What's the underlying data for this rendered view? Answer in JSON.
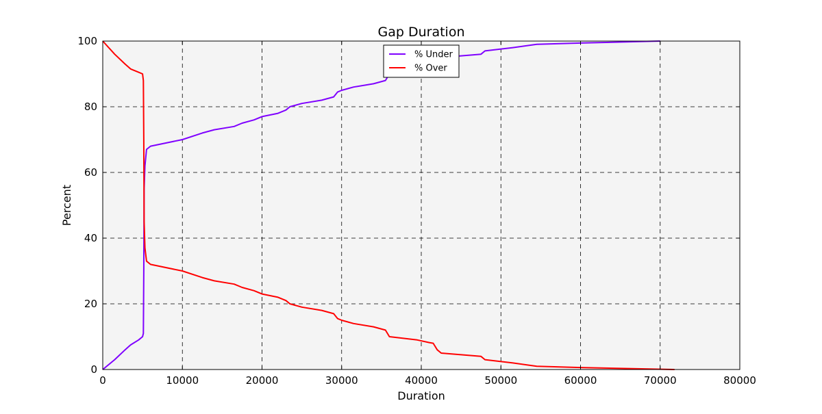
{
  "chart_data": {
    "type": "line",
    "title": "Gap Duration",
    "xlabel": "Duration",
    "ylabel": "Percent",
    "xlim": [
      0,
      80000
    ],
    "ylim": [
      0,
      100
    ],
    "xticks": [
      0,
      10000,
      20000,
      30000,
      40000,
      50000,
      60000,
      70000,
      80000
    ],
    "xtick_labels": [
      "0",
      "10000",
      "20000",
      "30000",
      "40000",
      "50000",
      "60000",
      "70000",
      "80000"
    ],
    "yticks": [
      0,
      20,
      40,
      60,
      80,
      100
    ],
    "ytick_labels": [
      "0",
      "20",
      "40",
      "60",
      "80",
      "100"
    ],
    "grid": true,
    "legend_position": "top-center",
    "plot_background": "#f4f4f4",
    "series": [
      {
        "name": "% Under",
        "color": "#7f00ff",
        "x": [
          0,
          1500,
          2800,
          3500,
          4500,
          5000,
          5100,
          5150,
          5200,
          5300,
          5500,
          6000,
          10000,
          12500,
          14000,
          16500,
          17500,
          19000,
          20000,
          22000,
          23000,
          23500,
          25000,
          27500,
          29000,
          29500,
          30000,
          31500,
          34000,
          35500,
          36000,
          41500,
          42000,
          42500,
          47500,
          48000,
          51500,
          54500,
          60000,
          70000
        ],
        "y": [
          0,
          3,
          6,
          7.5,
          9,
          10,
          11,
          30,
          55,
          62,
          67,
          68,
          70,
          72,
          73,
          74,
          75,
          76,
          77,
          78,
          79,
          80,
          81,
          82,
          83,
          84.5,
          85,
          86,
          87,
          88,
          90,
          92,
          94,
          95,
          96,
          97,
          98,
          99,
          99.4,
          100
        ]
      },
      {
        "name": "% Over",
        "color": "#ff0000",
        "x": [
          0,
          1500,
          2800,
          3500,
          4500,
          5000,
          5100,
          5150,
          5200,
          5300,
          5500,
          6000,
          10000,
          12500,
          14000,
          16500,
          17500,
          19000,
          20000,
          22000,
          23000,
          23500,
          25000,
          27500,
          29000,
          29500,
          30000,
          31500,
          34000,
          35500,
          36000,
          39500,
          41000,
          41500,
          42000,
          42500,
          47500,
          48000,
          51500,
          54500,
          60000,
          71800
        ],
        "y": [
          100,
          96,
          93,
          91.5,
          90.5,
          90,
          88,
          70,
          45,
          37,
          33,
          32,
          30,
          28,
          27,
          26,
          25,
          24,
          23,
          22,
          21,
          20,
          19,
          18,
          17,
          15.5,
          15,
          14,
          13,
          12,
          10,
          9,
          8.2,
          8,
          6,
          5,
          4,
          3,
          2,
          1,
          0.6,
          0
        ]
      }
    ]
  }
}
